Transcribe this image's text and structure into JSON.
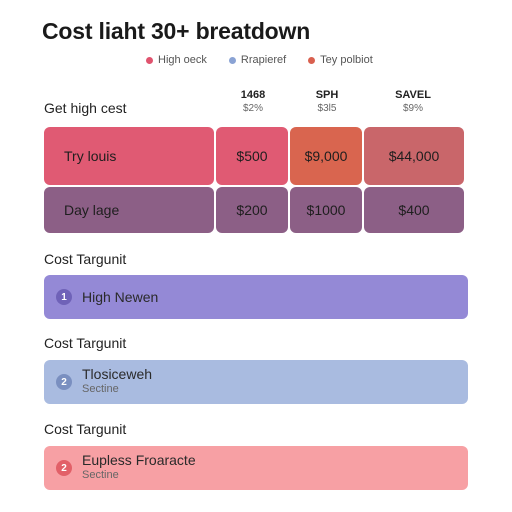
{
  "title": "Cost liaht 30+ breatdown",
  "legend": [
    {
      "label": "High oeck",
      "color": "#e0536e"
    },
    {
      "label": "Rrapieref",
      "color": "#8aa3d4"
    },
    {
      "label": "Tey polbiot",
      "color": "#d9604f"
    }
  ],
  "table": {
    "section_label": "Get high cest",
    "columns": [
      {
        "head": "1468",
        "sub": "$2%"
      },
      {
        "head": "SPH",
        "sub": "$3l5"
      },
      {
        "head": "SAVEL",
        "sub": "$9%"
      }
    ],
    "rows": [
      {
        "name": "Try louis",
        "values": [
          "$500",
          "$9,000",
          "$44,000"
        ]
      },
      {
        "name": "Day lage",
        "values": [
          "$200",
          "$1000",
          "$400"
        ]
      }
    ]
  },
  "sections": [
    {
      "label": "Cost Targunit",
      "badge": "1",
      "title": "High Newen",
      "sub": ""
    },
    {
      "label": "Cost Targunit",
      "badge": "2",
      "title": "Tlosiceweh",
      "sub": "Sectine"
    },
    {
      "label": "Cost Targunit",
      "badge": "2",
      "title": "Eupless Froaracte",
      "sub": "Sectine"
    }
  ],
  "colors": {
    "row1_name": "#e05a73",
    "row1_c1": "#e05a73",
    "row1_c2": "#d9654f",
    "row1_c3": "#c9666a",
    "row2": "#8c5f86",
    "bar1": "#9489d6",
    "bar2": "#a9bbe0",
    "bar3": "#f7a0a4"
  }
}
